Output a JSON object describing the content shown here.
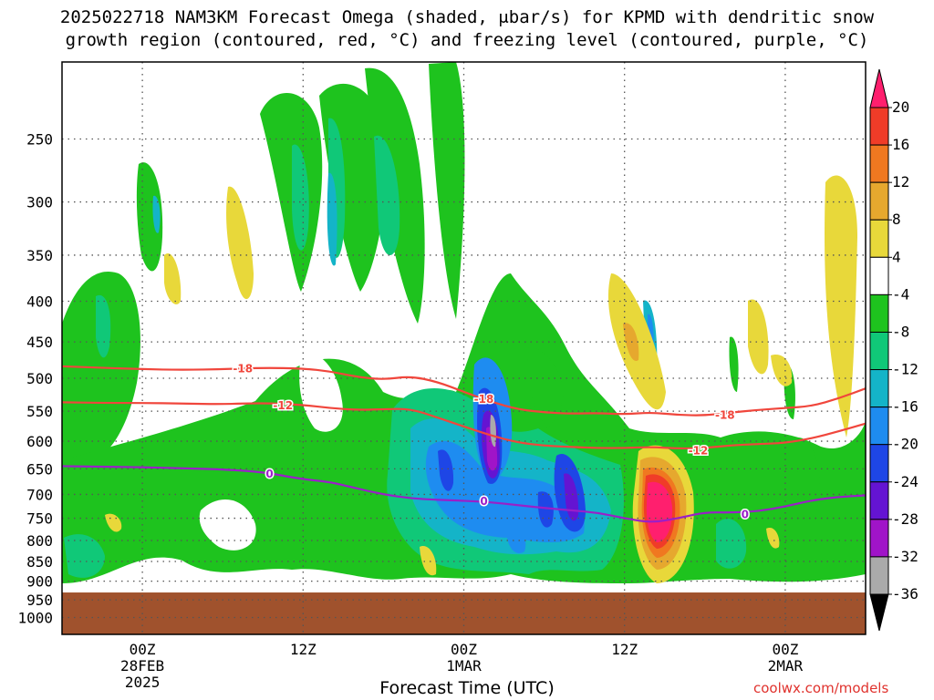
{
  "title_line1": "2025022718 NAM3KM Forecast Omega (shaded, μbar/s) for KPMD with dendritic snow",
  "title_line2": "growth region (contoured, red, °C) and freezing level (contoured, purple, °C)",
  "credit": "coolwx.com/models",
  "colors": {
    "red_contour": "#f0463c",
    "purple_contour": "#9a1fc8",
    "terrain": "#a0522d",
    "grid": "#555555"
  },
  "chart_data": {
    "type": "heatmap",
    "xlabel": "Forecast Time (UTC)",
    "x_ticks": [
      {
        "hour": 6,
        "lines": [
          "00Z",
          "28FEB",
          "2025"
        ]
      },
      {
        "hour": 18,
        "lines": [
          "12Z"
        ]
      },
      {
        "hour": 30,
        "lines": [
          "00Z",
          "1MAR"
        ]
      },
      {
        "hour": 42,
        "lines": [
          "12Z"
        ]
      },
      {
        "hour": 54,
        "lines": [
          "00Z",
          "2MAR"
        ]
      }
    ],
    "xlim": [
      0,
      60
    ],
    "ylabel": "",
    "y_scale": "log-pressure",
    "ylim_hpa": [
      1050,
      200
    ],
    "y_ticks_hpa": [
      250,
      300,
      350,
      400,
      450,
      500,
      550,
      600,
      650,
      700,
      750,
      800,
      850,
      900,
      950,
      1000
    ],
    "grid": true,
    "colorbar": {
      "levels": [
        20,
        16,
        12,
        8,
        4,
        -4,
        -8,
        -12,
        -16,
        -20,
        -24,
        -28,
        -32,
        -36
      ],
      "colors": [
        "#ff1f6e",
        "#f03c28",
        "#f07820",
        "#e6a82e",
        "#e8d83a",
        "#ffffff",
        "#1ec31e",
        "#10c878",
        "#14b4c8",
        "#1e8cf0",
        "#1e46e6",
        "#6414d2",
        "#a014c8",
        "#aaaaaa",
        "#000000"
      ]
    },
    "surface_pressure_hpa": 930,
    "contours": [
      {
        "label": "-18",
        "color": "#f0463c",
        "label_points": [
          {
            "hour": 13.5,
            "hpa": 485
          },
          {
            "hour": 31.5,
            "hpa": 530
          },
          {
            "hour": 49.5,
            "hpa": 555
          }
        ],
        "points": [
          [
            0,
            483
          ],
          [
            3,
            485
          ],
          [
            6,
            487
          ],
          [
            9,
            488
          ],
          [
            12,
            487
          ],
          [
            15,
            485
          ],
          [
            18,
            486
          ],
          [
            20,
            490
          ],
          [
            22,
            498
          ],
          [
            24,
            502
          ],
          [
            26,
            497
          ],
          [
            28,
            505
          ],
          [
            30,
            520
          ],
          [
            32,
            535
          ],
          [
            34,
            547
          ],
          [
            36,
            552
          ],
          [
            38,
            554
          ],
          [
            40,
            553
          ],
          [
            42,
            555
          ],
          [
            44,
            552
          ],
          [
            46,
            556
          ],
          [
            48,
            557
          ],
          [
            50,
            552
          ],
          [
            52,
            548
          ],
          [
            54,
            545
          ],
          [
            56,
            542
          ],
          [
            58,
            530
          ],
          [
            60,
            515
          ]
        ]
      },
      {
        "label": "-12",
        "color": "#f0463c",
        "label_points": [
          {
            "hour": 16.5,
            "hpa": 540
          },
          {
            "hour": 47.5,
            "hpa": 615
          }
        ],
        "points": [
          [
            0,
            536
          ],
          [
            3,
            537
          ],
          [
            6,
            537
          ],
          [
            9,
            538
          ],
          [
            12,
            539
          ],
          [
            15,
            537
          ],
          [
            18,
            540
          ],
          [
            20,
            545
          ],
          [
            22,
            548
          ],
          [
            24,
            547
          ],
          [
            26,
            546
          ],
          [
            28,
            560
          ],
          [
            30,
            575
          ],
          [
            32,
            590
          ],
          [
            34,
            602
          ],
          [
            36,
            608
          ],
          [
            38,
            610
          ],
          [
            40,
            612
          ],
          [
            42,
            612
          ],
          [
            44,
            610
          ],
          [
            46,
            613
          ],
          [
            48,
            612
          ],
          [
            50,
            607
          ],
          [
            52,
            605
          ],
          [
            54,
            603
          ],
          [
            56,
            595
          ],
          [
            58,
            583
          ],
          [
            60,
            570
          ]
        ]
      },
      {
        "label": "0",
        "color": "#9a1fc8",
        "label_points": [
          {
            "hour": 15.5,
            "hpa": 658
          },
          {
            "hour": 31.5,
            "hpa": 712
          },
          {
            "hour": 51,
            "hpa": 740
          }
        ],
        "points": [
          [
            0,
            645
          ],
          [
            3,
            646
          ],
          [
            6,
            647
          ],
          [
            9,
            649
          ],
          [
            12,
            651
          ],
          [
            15,
            656
          ],
          [
            18,
            670
          ],
          [
            20,
            675
          ],
          [
            22,
            688
          ],
          [
            24,
            700
          ],
          [
            26,
            708
          ],
          [
            28,
            711
          ],
          [
            30,
            713
          ],
          [
            32,
            716
          ],
          [
            34,
            722
          ],
          [
            36,
            728
          ],
          [
            38,
            733
          ],
          [
            40,
            738
          ],
          [
            42,
            750
          ],
          [
            44,
            760
          ],
          [
            46,
            750
          ],
          [
            48,
            737
          ],
          [
            50,
            738
          ],
          [
            52,
            735
          ],
          [
            54,
            725
          ],
          [
            56,
            712
          ],
          [
            58,
            705
          ],
          [
            60,
            702
          ]
        ]
      }
    ]
  }
}
